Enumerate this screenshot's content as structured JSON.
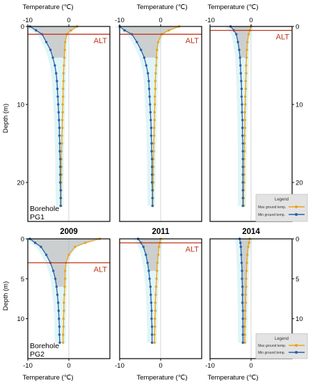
{
  "figure": {
    "top_axis_title": "Temperature (℃)",
    "bottom_axis_title": "Temperature (℃)",
    "y_label_left": "Depth (m)",
    "y_label_right": "",
    "alt_label": "ALT",
    "colors": {
      "max_line": "#e8a51a",
      "min_line": "#2a5fa8",
      "alt_line": "#c2371c",
      "envelope_fill": "#c8c8c8",
      "cyan_band": "#d8f3f5",
      "frame": "#000000"
    }
  },
  "legend": {
    "title": "Legend",
    "max_label": "Max ground temp.",
    "min_label": "Min ground temp."
  },
  "chart_data": [
    {
      "type": "line",
      "borehole": "Borehole PG1",
      "year": "2009",
      "title": "",
      "xlabel": "Temperature (℃)",
      "ylabel": "Depth (m)",
      "xlim": [
        -10,
        10
      ],
      "ylim": [
        0,
        25
      ],
      "alt_depth": 1.0,
      "xticks": [
        -10,
        0
      ],
      "yticks": [
        0,
        10,
        20
      ],
      "series": [
        {
          "name": "Max ground temp.",
          "x": [
            2.0,
            0.5,
            -0.5,
            -0.9,
            -1.0,
            -1.1,
            -1.2,
            -1.3,
            -1.3,
            -1.4,
            -1.4,
            -1.5,
            -1.5,
            -1.6,
            -1.6,
            -1.7,
            -1.7,
            -1.8,
            -1.8,
            -1.8,
            -1.8,
            -1.9,
            -1.9,
            -1.9,
            -1.9
          ],
          "y": [
            0,
            0.5,
            1,
            2,
            3,
            4,
            5,
            6,
            7,
            8,
            9,
            10,
            11,
            12,
            13,
            14,
            15,
            16,
            17,
            18,
            19,
            20,
            21,
            22,
            23
          ]
        },
        {
          "name": "Min ground temp.",
          "x": [
            -9.5,
            -8.0,
            -6.5,
            -5.5,
            -4.5,
            -3.9,
            -3.4,
            -3.1,
            -2.9,
            -2.8,
            -2.7,
            -2.6,
            -2.5,
            -2.4,
            -2.3,
            -2.3,
            -2.2,
            -2.2,
            -2.1,
            -2.1,
            -2.1,
            -2.1,
            -2.0,
            -2.0,
            -2.0
          ],
          "y": [
            0,
            0.5,
            1,
            2,
            3,
            4,
            5,
            6,
            7,
            8,
            9,
            10,
            11,
            12,
            13,
            14,
            15,
            16,
            17,
            18,
            19,
            20,
            21,
            22,
            23
          ]
        }
      ]
    },
    {
      "type": "line",
      "borehole": "",
      "year": "2011",
      "title": "",
      "xlabel": "Temperature (℃)",
      "ylabel": "Depth (m)",
      "xlim": [
        -10,
        10
      ],
      "ylim": [
        0,
        25
      ],
      "alt_depth": 1.0,
      "xticks": [
        -10,
        0
      ],
      "yticks": [
        0,
        10,
        20
      ],
      "series": [
        {
          "name": "Max ground temp.",
          "x": [
            4.5,
            2.0,
            0.2,
            -0.6,
            -0.9,
            -1.0,
            -1.1,
            -1.2,
            -1.3,
            -1.3,
            -1.4,
            -1.4,
            -1.5,
            -1.5,
            -1.6,
            -1.6,
            -1.7,
            -1.7,
            -1.8,
            -1.8,
            -1.8,
            -1.8,
            -1.9,
            -1.9,
            -1.9
          ],
          "y": [
            0,
            0.5,
            1,
            2,
            3,
            4,
            5,
            6,
            7,
            8,
            9,
            10,
            11,
            12,
            13,
            14,
            15,
            16,
            17,
            18,
            19,
            20,
            21,
            22,
            23
          ]
        },
        {
          "name": "Min ground temp.",
          "x": [
            -10.0,
            -8.8,
            -7.0,
            -5.8,
            -4.8,
            -4.0,
            -3.5,
            -3.1,
            -2.9,
            -2.8,
            -2.7,
            -2.6,
            -2.5,
            -2.4,
            -2.3,
            -2.3,
            -2.2,
            -2.2,
            -2.1,
            -2.1,
            -2.1,
            -2.1,
            -2.0,
            -2.0,
            -2.0
          ],
          "y": [
            0,
            0.5,
            1,
            2,
            3,
            4,
            5,
            6,
            7,
            8,
            9,
            10,
            11,
            12,
            13,
            14,
            15,
            16,
            17,
            18,
            19,
            20,
            21,
            22,
            23
          ]
        }
      ]
    },
    {
      "type": "line",
      "borehole": "",
      "year": "2014",
      "title": "",
      "xlabel": "Temperature (℃)",
      "ylabel": "Depth (m)",
      "xlim": [
        -10,
        10
      ],
      "ylim": [
        0,
        25
      ],
      "alt_depth": 0.5,
      "xticks": [
        -10,
        0
      ],
      "yticks": [
        0,
        10,
        20
      ],
      "series": [
        {
          "name": "Max ground temp.",
          "x": [
            0.0,
            -0.3,
            -0.6,
            -0.9,
            -1.0,
            -1.1,
            -1.2,
            -1.2,
            -1.3,
            -1.3,
            -1.4,
            -1.4,
            -1.5,
            -1.5,
            -1.5,
            -1.6,
            -1.6,
            -1.6,
            -1.7,
            -1.7,
            -1.7,
            -1.7,
            -1.8,
            -1.8,
            -1.8
          ],
          "y": [
            0,
            0.5,
            1,
            2,
            3,
            4,
            5,
            6,
            7,
            8,
            9,
            10,
            11,
            12,
            13,
            14,
            15,
            16,
            17,
            18,
            19,
            20,
            21,
            22,
            23
          ]
        },
        {
          "name": "Min ground temp.",
          "x": [
            -5.0,
            -4.2,
            -3.6,
            -3.2,
            -2.9,
            -2.7,
            -2.6,
            -2.5,
            -2.4,
            -2.3,
            -2.3,
            -2.2,
            -2.2,
            -2.1,
            -2.1,
            -2.1,
            -2.0,
            -2.0,
            -2.0,
            -2.0,
            -2.0,
            -2.0,
            -2.0,
            -2.0,
            -2.0
          ],
          "y": [
            0,
            0.5,
            1,
            2,
            3,
            4,
            5,
            6,
            7,
            8,
            9,
            10,
            11,
            12,
            13,
            14,
            15,
            16,
            17,
            18,
            19,
            20,
            21,
            22,
            23
          ]
        }
      ]
    },
    {
      "type": "line",
      "borehole": "Borehole PG2",
      "year": "",
      "title": "",
      "xlabel": "Temperature (℃)",
      "ylabel": "Depth (m)",
      "xlim": [
        -10,
        10
      ],
      "ylim": [
        0,
        15
      ],
      "alt_depth": 3.0,
      "xticks": [
        -10,
        0
      ],
      "yticks": [
        0,
        5,
        10
      ],
      "series": [
        {
          "name": "Max ground temp.",
          "x": [
            7.5,
            4.0,
            1.5,
            0.0,
            -0.7,
            -0.9,
            -0.9,
            -1.0,
            -1.1,
            -1.2,
            -1.2,
            -1.3,
            -1.3,
            -1.4,
            -1.4
          ],
          "y": [
            0,
            0.5,
            1,
            2,
            3,
            4,
            5,
            6,
            7,
            8,
            9,
            10,
            11,
            12,
            13
          ]
        },
        {
          "name": "Min ground temp.",
          "x": [
            -9.5,
            -8.2,
            -6.8,
            -5.5,
            -4.5,
            -3.8,
            -3.3,
            -3.0,
            -2.8,
            -2.6,
            -2.5,
            -2.4,
            -2.3,
            -2.3,
            -2.2
          ],
          "y": [
            0,
            0.5,
            1,
            2,
            3,
            4,
            5,
            6,
            7,
            8,
            9,
            10,
            11,
            12,
            13
          ]
        }
      ]
    },
    {
      "type": "line",
      "borehole": "",
      "year": "",
      "title": "",
      "xlabel": "Temperature (℃)",
      "ylabel": "Depth (m)",
      "xlim": [
        -10,
        10
      ],
      "ylim": [
        0,
        15
      ],
      "alt_depth": 0.5,
      "xticks": [
        -10,
        0
      ],
      "yticks": [
        0,
        5,
        10
      ],
      "series": [
        {
          "name": "Max ground temp.",
          "x": [
            0.0,
            -0.2,
            -0.4,
            -0.6,
            -0.8,
            -0.9,
            -1.0,
            -1.1,
            -1.2,
            -1.3,
            -1.3,
            -1.4,
            -1.4,
            -1.5,
            -1.5
          ],
          "y": [
            0,
            0.5,
            1,
            2,
            3,
            4,
            5,
            6,
            7,
            8,
            9,
            10,
            11,
            12,
            13
          ]
        },
        {
          "name": "Min ground temp.",
          "x": [
            -5.5,
            -4.8,
            -4.2,
            -3.6,
            -3.2,
            -2.9,
            -2.7,
            -2.5,
            -2.4,
            -2.3,
            -2.2,
            -2.2,
            -2.1,
            -2.1,
            -2.1
          ],
          "y": [
            0,
            0.5,
            1,
            2,
            3,
            4,
            5,
            6,
            7,
            8,
            9,
            10,
            11,
            12,
            13
          ]
        }
      ]
    },
    {
      "type": "line",
      "borehole": "",
      "year": "",
      "title": "",
      "xlabel": "Temperature (℃)",
      "ylabel": "Depth (m)",
      "xlim": [
        -10,
        10
      ],
      "ylim": [
        0,
        15
      ],
      "alt_depth": null,
      "xticks": [
        -10,
        0
      ],
      "yticks": [
        0,
        5,
        10
      ],
      "series": [
        {
          "name": "Max ground temp.",
          "x": [
            -0.3,
            -0.5,
            -0.7,
            -0.9,
            -1.0,
            -1.1,
            -1.2,
            -1.2,
            -1.3,
            -1.3,
            -1.4,
            -1.4,
            -1.5,
            -1.5,
            -1.5
          ],
          "y": [
            0,
            0.5,
            1,
            2,
            3,
            4,
            5,
            6,
            7,
            8,
            9,
            10,
            11,
            12,
            13
          ]
        },
        {
          "name": "Min ground temp.",
          "x": [
            -2.8,
            -2.6,
            -2.5,
            -2.4,
            -2.3,
            -2.2,
            -2.2,
            -2.1,
            -2.1,
            -2.1,
            -2.0,
            -2.0,
            -2.0,
            -2.0,
            -2.0
          ],
          "y": [
            0,
            0.5,
            1,
            2,
            3,
            4,
            5,
            6,
            7,
            8,
            9,
            10,
            11,
            12,
            13
          ]
        }
      ]
    }
  ]
}
